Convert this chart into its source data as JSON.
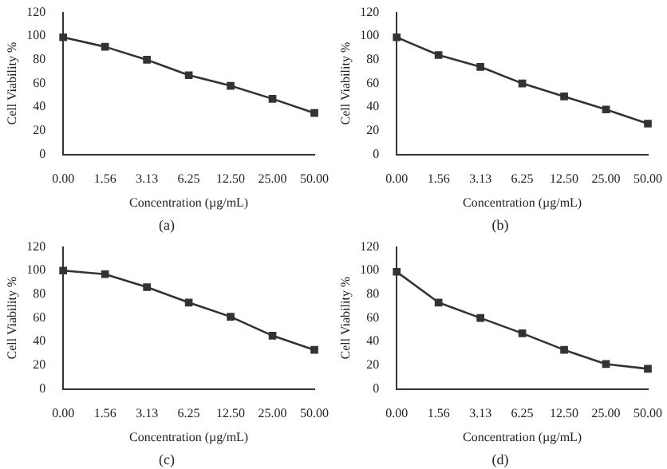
{
  "chart_data": [
    {
      "type": "line",
      "categories": [
        "0.00",
        "1.56",
        "3.13",
        "6.25",
        "12.50",
        "25.00",
        "50.00"
      ],
      "series": [
        {
          "color": "#333333",
          "values": [
            99,
            91,
            80,
            67,
            58,
            47,
            35
          ]
        }
      ],
      "xlabel": "Concentration (µg/mL)",
      "ylabel": "Cell Viability %",
      "ylim": [
        0,
        120
      ],
      "yticks": [
        0,
        20,
        40,
        60,
        80,
        100,
        120
      ],
      "grid": false,
      "legend": false,
      "marker": "square",
      "line_style": "solid",
      "annotations": [
        "(a)"
      ]
    },
    {
      "type": "line",
      "categories": [
        "0.00",
        "1.56",
        "3.13",
        "6.25",
        "12.50",
        "25.00",
        "50.00"
      ],
      "series": [
        {
          "color": "#333333",
          "values": [
            99,
            84,
            74,
            60,
            49,
            38,
            26
          ]
        }
      ],
      "xlabel": "Concentration (µg/mL)",
      "ylabel": "Cell Viability %",
      "ylim": [
        0,
        120
      ],
      "yticks": [
        0,
        20,
        40,
        60,
        80,
        100,
        120
      ],
      "grid": false,
      "legend": false,
      "marker": "square",
      "line_style": "solid",
      "annotations": [
        "(b)"
      ]
    },
    {
      "type": "line",
      "categories": [
        "0.00",
        "1.56",
        "3.13",
        "6.25",
        "12.50",
        "25.00",
        "50.00"
      ],
      "series": [
        {
          "color": "#333333",
          "values": [
            100,
            97,
            86,
            73,
            61,
            45,
            33
          ]
        }
      ],
      "xlabel": "Concentration (µg/mL)",
      "ylabel": "Cell Viability %",
      "ylim": [
        0,
        120
      ],
      "yticks": [
        0,
        20,
        40,
        60,
        80,
        100,
        120
      ],
      "grid": false,
      "legend": false,
      "marker": "square",
      "line_style": "solid",
      "annotations": [
        "(c)"
      ]
    },
    {
      "type": "line",
      "categories": [
        "0.00",
        "1.56",
        "3.13",
        "6.25",
        "12.50",
        "25.00",
        "50.00"
      ],
      "series": [
        {
          "color": "#333333",
          "values": [
            99,
            73,
            60,
            47,
            33,
            21,
            17
          ]
        }
      ],
      "xlabel": "Concentration (µg/mL)",
      "ylabel": "Cell Viability %",
      "ylim": [
        0,
        120
      ],
      "yticks": [
        0,
        20,
        40,
        60,
        80,
        100,
        120
      ],
      "grid": false,
      "legend": false,
      "marker": "square",
      "line_style": "solid",
      "annotations": [
        "(d)"
      ]
    }
  ]
}
